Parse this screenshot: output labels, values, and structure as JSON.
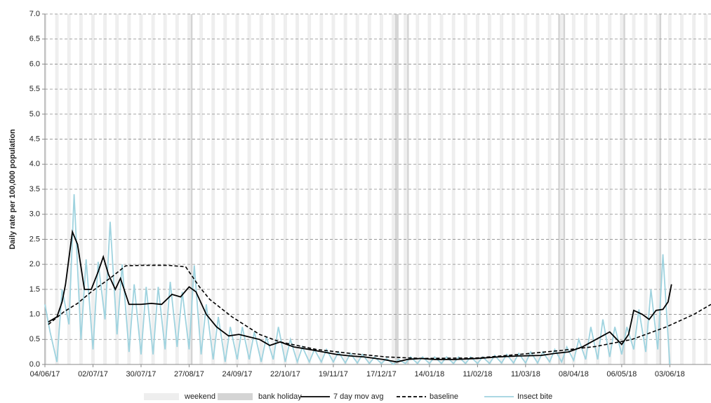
{
  "chart_data": {
    "type": "line",
    "y_label": "Daily rate per 100,000 population",
    "xlim": [
      0,
      388
    ],
    "xticks": [
      {
        "value": 0,
        "label": "04/06/17"
      },
      {
        "value": 28,
        "label": "02/07/17"
      },
      {
        "value": 56,
        "label": "30/07/17"
      },
      {
        "value": 84,
        "label": "27/08/17"
      },
      {
        "value": 112,
        "label": "24/09/17"
      },
      {
        "value": 140,
        "label": "22/10/17"
      },
      {
        "value": 168,
        "label": "19/11/17"
      },
      {
        "value": 196,
        "label": "17/12/17"
      },
      {
        "value": 224,
        "label": "14/01/18"
      },
      {
        "value": 252,
        "label": "11/02/18"
      },
      {
        "value": 280,
        "label": "11/03/18"
      },
      {
        "value": 308,
        "label": "08/04/18"
      },
      {
        "value": 336,
        "label": "06/05/18"
      },
      {
        "value": 364,
        "label": "03/06/18"
      }
    ],
    "ylim": [
      0,
      7
    ],
    "yticks": [
      {
        "value": 0,
        "label": "0.0"
      },
      {
        "value": 0.5,
        "label": "0.5"
      },
      {
        "value": 1,
        "label": "1.0"
      },
      {
        "value": 1.5,
        "label": "1.5"
      },
      {
        "value": 2,
        "label": "2.0"
      },
      {
        "value": 2.5,
        "label": "2.5"
      },
      {
        "value": 3,
        "label": "3.0"
      },
      {
        "value": 3.5,
        "label": "3.5"
      },
      {
        "value": 4,
        "label": "4.0"
      },
      {
        "value": 4.5,
        "label": "4.5"
      },
      {
        "value": 5,
        "label": "5.0"
      },
      {
        "value": 5.5,
        "label": "5.5"
      },
      {
        "value": 6,
        "label": "6.0"
      },
      {
        "value": 6.5,
        "label": "6.5"
      },
      {
        "value": 7,
        "label": "7.0"
      }
    ],
    "grid": true,
    "shading": [
      {
        "name": "weekend",
        "color": "#eeeeee",
        "x": [
          0,
          6,
          7,
          13,
          14,
          20,
          21,
          27,
          28,
          34,
          35,
          41,
          42,
          48,
          49,
          55,
          56,
          62,
          63,
          69,
          70,
          76,
          77,
          83,
          84,
          90,
          91,
          97,
          98,
          104,
          105,
          111,
          112,
          118,
          119,
          125,
          126,
          132,
          133,
          139,
          140,
          146,
          147,
          153,
          154,
          160,
          161,
          167,
          168,
          174,
          175,
          181,
          182,
          188,
          189,
          195,
          196,
          202,
          203,
          209,
          210,
          216,
          217,
          223,
          224,
          230,
          231,
          237,
          238,
          244,
          245,
          251,
          252,
          258,
          259,
          265,
          266,
          272,
          273,
          279,
          280,
          286,
          287,
          293,
          294,
          300,
          301,
          307,
          308,
          314,
          315,
          321,
          322,
          328,
          329,
          335,
          336,
          342,
          343,
          349,
          350,
          356,
          357,
          363,
          364,
          370,
          371,
          377,
          378,
          384,
          385
        ]
      },
      {
        "name": "bank holiday",
        "color": "#d4d4d4",
        "x": [
          85,
          204,
          205,
          211,
          299,
          302,
          337,
          358
        ]
      }
    ],
    "series": [
      {
        "name": "7 day mov avg",
        "color": "#000000",
        "dashed": false,
        "x": [
          2,
          7,
          10,
          12,
          16,
          19,
          23,
          27,
          31,
          34,
          37,
          41,
          44,
          49,
          56,
          62,
          68,
          74,
          79,
          84,
          88,
          94,
          100,
          107,
          113,
          119,
          125,
          131,
          137,
          145,
          154,
          162,
          170,
          178,
          186,
          197,
          205,
          211,
          219,
          227,
          239,
          252,
          264,
          276,
          289,
          297,
          305,
          313,
          321,
          329,
          336,
          340,
          343,
          348,
          352,
          356,
          360,
          363,
          365
        ],
        "values": [
          0.85,
          0.95,
          1.25,
          1.6,
          2.65,
          2.4,
          1.5,
          1.5,
          1.85,
          2.15,
          1.8,
          1.5,
          1.72,
          1.2,
          1.2,
          1.22,
          1.2,
          1.4,
          1.35,
          1.55,
          1.45,
          1.0,
          0.75,
          0.57,
          0.6,
          0.55,
          0.5,
          0.38,
          0.45,
          0.35,
          0.3,
          0.25,
          0.2,
          0.17,
          0.15,
          0.1,
          0.05,
          0.1,
          0.12,
          0.1,
          0.1,
          0.12,
          0.15,
          0.17,
          0.18,
          0.22,
          0.25,
          0.35,
          0.5,
          0.65,
          0.4,
          0.6,
          1.08,
          1.0,
          0.9,
          1.08,
          1.1,
          1.25,
          1.6
        ]
      },
      {
        "name": "baseline",
        "color": "#000000",
        "dashed": true,
        "x": [
          2,
          11,
          19,
          27,
          39,
          47,
          56,
          72,
          82,
          90,
          96,
          109,
          125,
          137,
          158,
          178,
          199,
          219,
          252,
          276,
          301,
          321,
          342,
          362,
          378,
          388
        ],
        "values": [
          0.8,
          1.05,
          1.22,
          1.45,
          1.75,
          1.97,
          1.98,
          1.98,
          1.95,
          1.55,
          1.3,
          0.95,
          0.6,
          0.45,
          0.3,
          0.22,
          0.15,
          0.12,
          0.13,
          0.2,
          0.28,
          0.36,
          0.5,
          0.75,
          1.0,
          1.2
        ]
      },
      {
        "name": "Insect bite",
        "color": "#9fd3df",
        "dashed": false,
        "x": [
          0,
          3,
          7,
          10,
          14,
          17,
          21,
          24,
          28,
          31,
          35,
          38,
          42,
          45,
          49,
          52,
          56,
          59,
          63,
          66,
          70,
          73,
          77,
          80,
          84,
          87,
          91,
          94,
          98,
          101,
          105,
          108,
          112,
          115,
          119,
          122,
          126,
          129,
          133,
          136,
          140,
          143,
          147,
          150,
          154,
          157,
          161,
          164,
          168,
          171,
          175,
          178,
          182,
          185,
          189,
          192,
          196,
          199,
          203,
          206,
          210,
          213,
          217,
          220,
          224,
          227,
          231,
          234,
          238,
          241,
          245,
          248,
          252,
          255,
          259,
          262,
          266,
          269,
          273,
          276,
          280,
          283,
          287,
          290,
          294,
          297,
          301,
          304,
          308,
          311,
          315,
          318,
          322,
          325,
          329,
          332,
          336,
          339,
          343,
          346,
          350,
          353,
          357,
          360,
          364
        ],
        "values": [
          1.2,
          0.65,
          0.05,
          1.5,
          0.8,
          3.4,
          0.5,
          2.1,
          0.3,
          2.05,
          0.9,
          2.85,
          0.6,
          2.0,
          0.25,
          1.6,
          0.2,
          1.55,
          0.2,
          1.55,
          0.3,
          1.65,
          0.35,
          1.45,
          0.3,
          1.98,
          0.2,
          1.2,
          0.1,
          0.95,
          0.05,
          0.75,
          0.1,
          0.75,
          0.1,
          0.65,
          0.05,
          0.55,
          0.1,
          0.75,
          0.05,
          0.5,
          0.05,
          0.35,
          0.05,
          0.3,
          0.05,
          0.3,
          0.05,
          0.25,
          0.03,
          0.22,
          0.03,
          0.2,
          0.02,
          0.15,
          0.02,
          0.12,
          0.0,
          0.1,
          0.02,
          0.15,
          0.02,
          0.15,
          0.02,
          0.15,
          0.02,
          0.15,
          0.02,
          0.15,
          0.02,
          0.15,
          0.02,
          0.15,
          0.02,
          0.18,
          0.03,
          0.2,
          0.03,
          0.22,
          0.03,
          0.25,
          0.03,
          0.25,
          0.05,
          0.3,
          0.05,
          0.35,
          0.08,
          0.5,
          0.1,
          0.75,
          0.1,
          0.9,
          0.15,
          0.75,
          0.2,
          0.75,
          0.3,
          1.1,
          0.25,
          1.5,
          0.3,
          2.2,
          0.0
        ]
      }
    ]
  }
}
